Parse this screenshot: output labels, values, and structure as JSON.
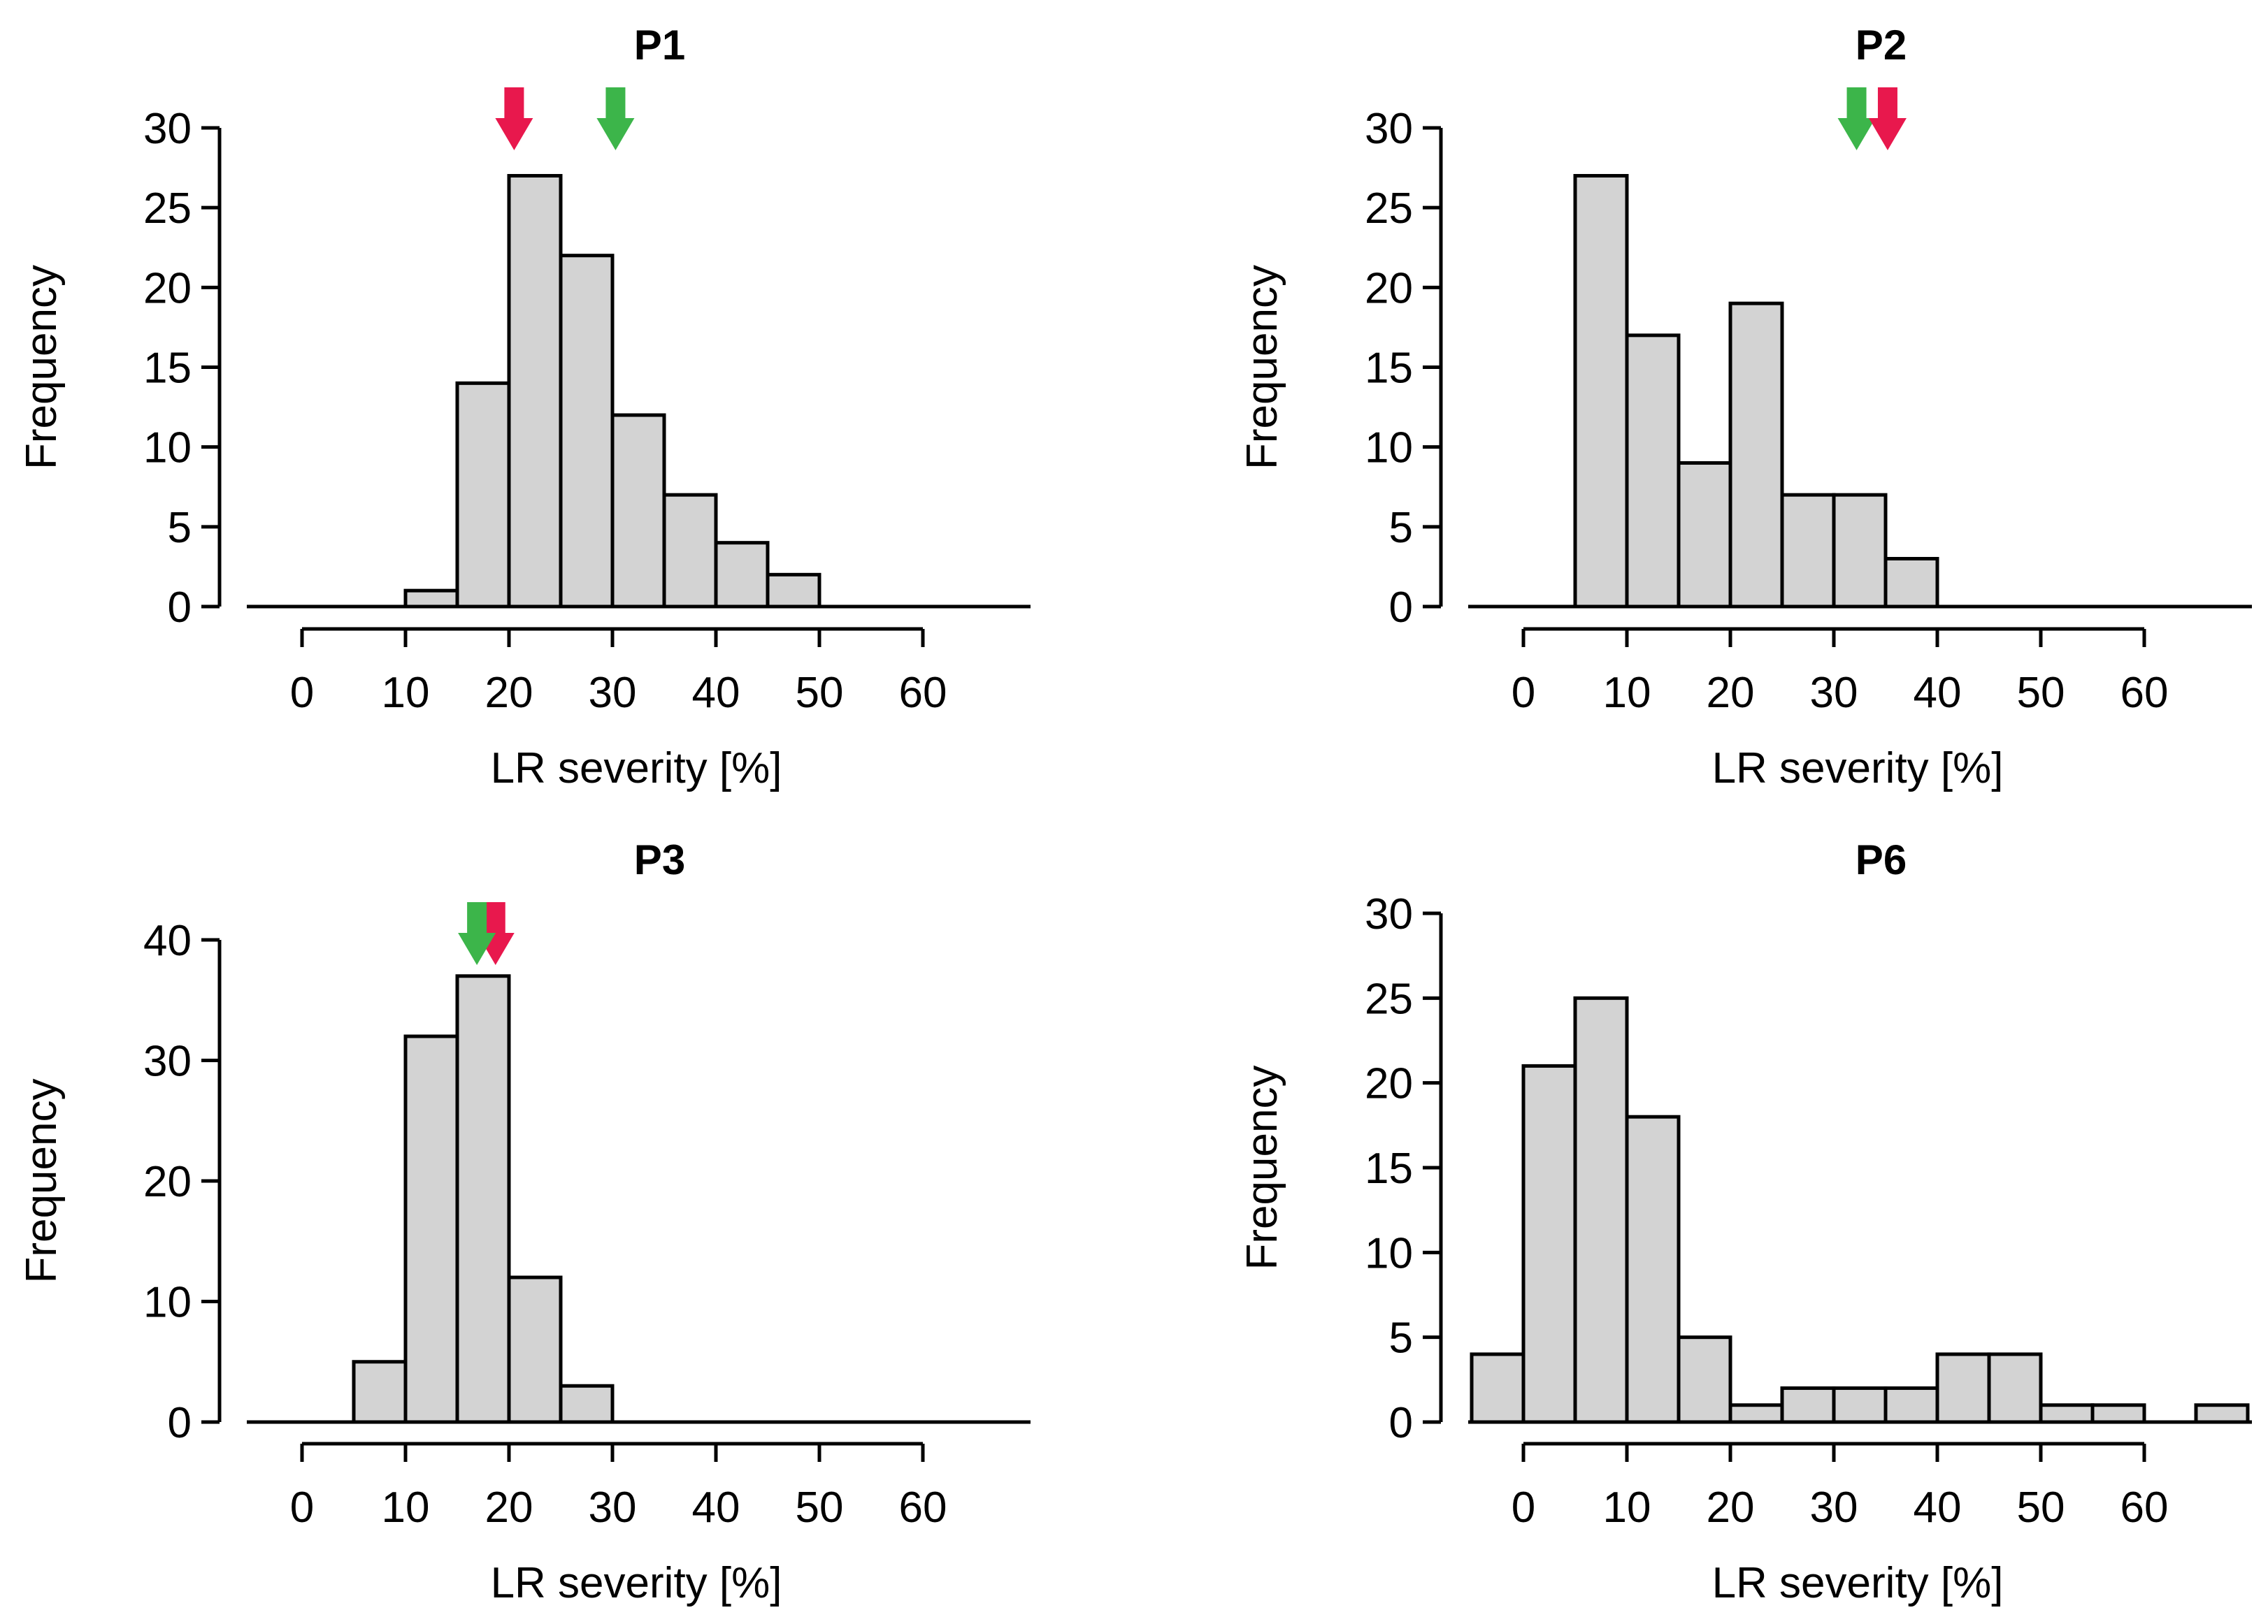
{
  "chart_data": [
    {
      "type": "bar",
      "title": "P1",
      "xlabel": "LR severity [%]",
      "ylabel": "Frequency",
      "xlim": [
        -5,
        70
      ],
      "ylim": [
        0,
        30
      ],
      "x_axis_ticks": [
        0,
        10,
        20,
        30,
        40,
        50,
        60
      ],
      "y_axis_ticks": [
        0,
        5,
        10,
        15,
        20,
        25,
        30
      ],
      "bin_width": 5,
      "bin_starts": [
        10,
        15,
        20,
        25,
        30,
        35,
        40,
        45
      ],
      "values": [
        1,
        14,
        27,
        22,
        12,
        7,
        4,
        2
      ],
      "arrows": [
        {
          "name": "red",
          "x": 20.5,
          "color": "#e8184d"
        },
        {
          "name": "green",
          "x": 30.3,
          "color": "#3cb54a"
        }
      ]
    },
    {
      "type": "bar",
      "title": "P2",
      "xlabel": "LR severity [%]",
      "ylabel": "Frequency",
      "xlim": [
        -5,
        70
      ],
      "ylim": [
        0,
        30
      ],
      "x_axis_ticks": [
        0,
        10,
        20,
        30,
        40,
        50,
        60
      ],
      "y_axis_ticks": [
        0,
        5,
        10,
        15,
        20,
        25,
        30
      ],
      "bin_width": 5,
      "bin_starts": [
        5,
        10,
        15,
        20,
        25,
        30,
        35
      ],
      "values": [
        27,
        17,
        9,
        19,
        7,
        7,
        3
      ],
      "arrows": [
        {
          "name": "green",
          "x": 32.2,
          "color": "#3cb54a"
        },
        {
          "name": "red",
          "x": 35.2,
          "color": "#e8184d"
        }
      ]
    },
    {
      "type": "bar",
      "title": "P3",
      "xlabel": "LR severity [%]",
      "ylabel": "Frequency",
      "xlim": [
        -5,
        70
      ],
      "ylim": [
        0,
        40
      ],
      "x_axis_ticks": [
        0,
        10,
        20,
        30,
        40,
        50,
        60
      ],
      "y_axis_ticks": [
        0,
        10,
        20,
        30,
        40
      ],
      "bin_width": 5,
      "bin_starts": [
        5,
        10,
        15,
        20,
        25
      ],
      "values": [
        5,
        32,
        37,
        12,
        3
      ],
      "arrows": [
        {
          "name": "red",
          "x": 18.7,
          "color": "#e8184d"
        },
        {
          "name": "green",
          "x": 16.9,
          "color": "#3cb54a"
        }
      ]
    },
    {
      "type": "bar",
      "title": "P6",
      "xlabel": "LR severity [%]",
      "ylabel": "Frequency",
      "xlim": [
        -5,
        70
      ],
      "ylim": [
        0,
        30
      ],
      "x_axis_ticks": [
        0,
        10,
        20,
        30,
        40,
        50,
        60
      ],
      "y_axis_ticks": [
        0,
        5,
        10,
        15,
        20,
        25,
        30
      ],
      "bin_width": 5,
      "bin_starts": [
        -5,
        0,
        5,
        10,
        15,
        20,
        25,
        30,
        35,
        40,
        45,
        50,
        55,
        60,
        65
      ],
      "values": [
        4,
        21,
        25,
        18,
        5,
        1,
        2,
        2,
        2,
        4,
        4,
        1,
        1,
        0,
        1
      ],
      "arrows": []
    }
  ]
}
